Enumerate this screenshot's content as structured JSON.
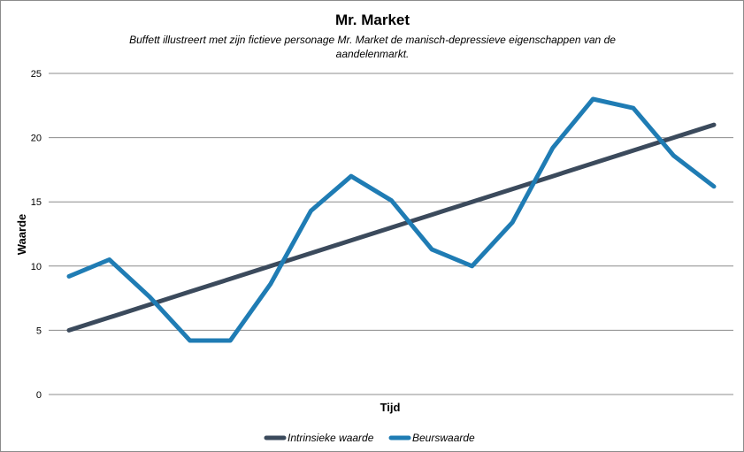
{
  "chart_data": {
    "type": "line",
    "title": "Mr. Market",
    "subtitle_lines": [
      "Buffett illustreert met zijn fictieve personage Mr. Market de manisch-depressieve  eigenschappen van de",
      "aandelenmarkt."
    ],
    "xlabel": "Tijd",
    "ylabel": "Waarde",
    "ylim": [
      0,
      25
    ],
    "yticks": [
      0,
      5,
      10,
      15,
      20,
      25
    ],
    "grid": true,
    "legend_position": "bottom",
    "x": [
      1,
      2,
      3,
      4,
      5,
      6,
      7,
      8,
      9,
      10,
      11,
      12,
      13,
      14,
      15,
      16,
      17
    ],
    "series": [
      {
        "name": "Intrinsieke waarde",
        "color": "#3b4a5c",
        "values": [
          5,
          6,
          7,
          8,
          9,
          10,
          11,
          12,
          13,
          14,
          15,
          16,
          17,
          18,
          19,
          20,
          21
        ]
      },
      {
        "name": "Beurswaarde",
        "color": "#1f7cb4",
        "values": [
          9.2,
          10.5,
          7.6,
          4.2,
          4.2,
          8.6,
          14.3,
          17.0,
          15.1,
          11.3,
          10.0,
          13.4,
          19.2,
          23.0,
          22.3,
          18.6,
          16.2
        ]
      }
    ]
  }
}
